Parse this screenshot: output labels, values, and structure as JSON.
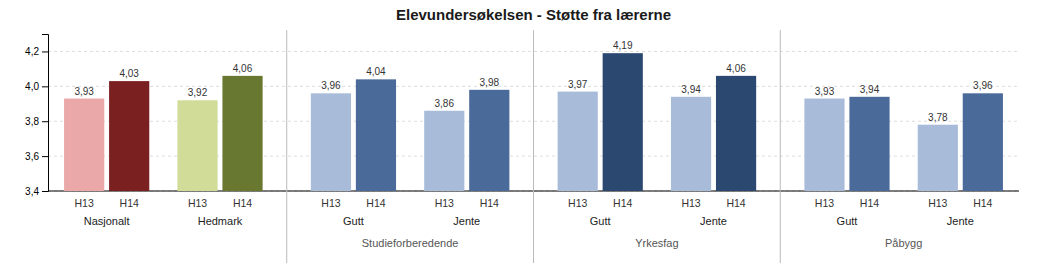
{
  "chart_data": {
    "type": "bar",
    "title": "Elevundersøkelsen - Støtte fra lærerne",
    "categories": [
      "Nasjonalt",
      "Hedmark",
      "Gutt",
      "Jente",
      "Gutt",
      "Jente",
      "Gutt",
      "Jente"
    ],
    "sections": [
      null,
      null,
      "Studieforberedende",
      "Studieforberedende",
      "Yrkesfag",
      "Yrkesfag",
      "Påbygg",
      "Påbygg"
    ],
    "series": [
      {
        "name": "H13",
        "values": [
          3.93,
          3.92,
          3.96,
          3.86,
          3.97,
          3.94,
          3.93,
          3.78
        ],
        "value_labels": [
          "3,93",
          "3,92",
          "3,96",
          "3,86",
          "3,97",
          "3,94",
          "3,93",
          "3,78"
        ],
        "colors": [
          "#EAA8A8",
          "#D0DC98",
          "#A8BCDA",
          "#A8BCDA",
          "#A8BCDA",
          "#A8BCDA",
          "#A8BCDA",
          "#A8BCDA"
        ]
      },
      {
        "name": "H14",
        "values": [
          4.03,
          4.06,
          4.04,
          3.98,
          4.19,
          4.06,
          3.94,
          3.96
        ],
        "value_labels": [
          "4,03",
          "4,06",
          "4,04",
          "3,98",
          "4,19",
          "4,06",
          "3,94",
          "3,96"
        ],
        "colors": [
          "#7B2020",
          "#687830",
          "#4A6A9A",
          "#4A6A9A",
          "#2A4870",
          "#2A4870",
          "#4A6A9A",
          "#4A6A9A"
        ]
      }
    ],
    "ylim": [
      3.4,
      4.3
    ],
    "yticks": [
      {
        "value": 3.4,
        "label": "3,4"
      },
      {
        "value": 3.6,
        "label": "3,6"
      },
      {
        "value": 3.8,
        "label": "3,8"
      },
      {
        "value": 4.0,
        "label": "4,0"
      },
      {
        "value": 4.2,
        "label": "4,2"
      }
    ],
    "grid": true,
    "data_labels": true
  }
}
